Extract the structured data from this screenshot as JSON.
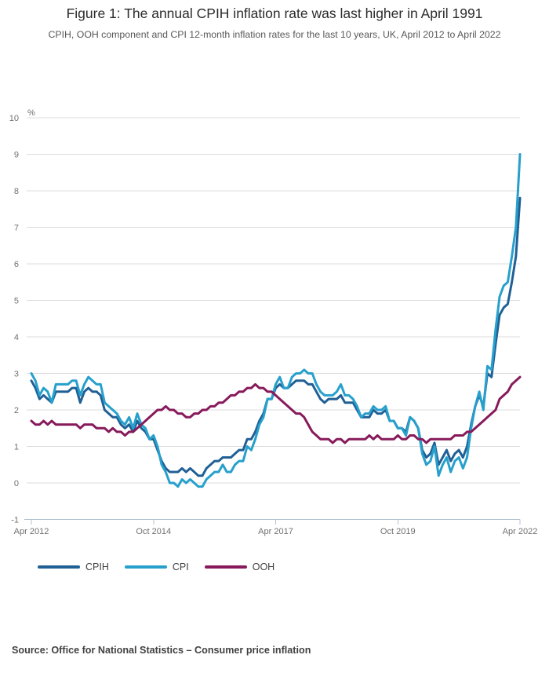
{
  "header": {
    "title": "Figure 1: The annual CPIH inflation rate was last higher in April 1991",
    "subtitle": "CPIH, OOH component and CPI 12-month inflation rates for the last 10 years, UK, April 2012 to April 2022"
  },
  "chart_data": {
    "type": "line",
    "x_unit": "month",
    "x_start": "Apr 2012",
    "x_end": "Apr 2022",
    "x_tick_labels": [
      "Apr 2012",
      "Oct 2014",
      "Apr 2017",
      "Oct 2019",
      "Apr 2022"
    ],
    "y_axis": {
      "unit_label": "%",
      "min": -1,
      "max": 10,
      "tick_step": 1
    },
    "grid": "horizontal",
    "legend_position": "bottom-left",
    "series": [
      {
        "name": "CPIH",
        "color": "#206095",
        "values": [
          2.8,
          2.6,
          2.3,
          2.4,
          2.3,
          2.2,
          2.5,
          2.5,
          2.5,
          2.5,
          2.6,
          2.6,
          2.2,
          2.5,
          2.6,
          2.5,
          2.5,
          2.4,
          2.0,
          1.9,
          1.8,
          1.8,
          1.6,
          1.5,
          1.6,
          1.4,
          1.7,
          1.5,
          1.4,
          1.2,
          1.2,
          0.9,
          0.6,
          0.4,
          0.3,
          0.3,
          0.3,
          0.4,
          0.3,
          0.4,
          0.3,
          0.2,
          0.2,
          0.4,
          0.5,
          0.6,
          0.6,
          0.7,
          0.7,
          0.7,
          0.8,
          0.9,
          0.9,
          1.2,
          1.2,
          1.4,
          1.7,
          1.9,
          2.3,
          2.3,
          2.6,
          2.7,
          2.6,
          2.6,
          2.7,
          2.8,
          2.8,
          2.8,
          2.7,
          2.7,
          2.5,
          2.3,
          2.2,
          2.3,
          2.3,
          2.3,
          2.4,
          2.2,
          2.2,
          2.2,
          2.0,
          1.8,
          1.8,
          1.8,
          2.0,
          1.9,
          1.9,
          2.0,
          1.7,
          1.7,
          1.5,
          1.5,
          1.4,
          1.8,
          1.7,
          1.5,
          0.9,
          0.7,
          0.8,
          1.1,
          0.5,
          0.7,
          0.9,
          0.6,
          0.8,
          0.9,
          0.7,
          1.0,
          1.6,
          2.1,
          2.4,
          2.1,
          3.0,
          2.9,
          3.8,
          4.6,
          4.8,
          4.9,
          5.5,
          6.2,
          7.8
        ]
      },
      {
        "name": "CPI",
        "color": "#27a0cc",
        "values": [
          3.0,
          2.8,
          2.4,
          2.6,
          2.5,
          2.2,
          2.7,
          2.7,
          2.7,
          2.7,
          2.8,
          2.8,
          2.4,
          2.7,
          2.9,
          2.8,
          2.7,
          2.7,
          2.2,
          2.1,
          2.0,
          1.9,
          1.7,
          1.6,
          1.8,
          1.5,
          1.9,
          1.6,
          1.5,
          1.2,
          1.3,
          1.0,
          0.5,
          0.3,
          0.0,
          0.0,
          -0.1,
          0.1,
          0.0,
          0.1,
          0.0,
          -0.1,
          -0.1,
          0.1,
          0.2,
          0.3,
          0.3,
          0.5,
          0.3,
          0.3,
          0.5,
          0.6,
          0.6,
          1.0,
          0.9,
          1.2,
          1.6,
          1.8,
          2.3,
          2.3,
          2.7,
          2.9,
          2.6,
          2.6,
          2.9,
          3.0,
          3.0,
          3.1,
          3.0,
          3.0,
          2.7,
          2.5,
          2.4,
          2.4,
          2.4,
          2.5,
          2.7,
          2.4,
          2.4,
          2.3,
          2.1,
          1.8,
          1.9,
          1.9,
          2.1,
          2.0,
          2.0,
          2.1,
          1.7,
          1.7,
          1.5,
          1.5,
          1.3,
          1.8,
          1.7,
          1.5,
          0.8,
          0.5,
          0.6,
          1.0,
          0.2,
          0.5,
          0.7,
          0.3,
          0.6,
          0.7,
          0.4,
          0.7,
          1.5,
          2.1,
          2.5,
          2.0,
          3.2,
          3.1,
          4.2,
          5.1,
          5.4,
          5.5,
          6.2,
          7.0,
          9.0
        ]
      },
      {
        "name": "OOH",
        "color": "#871a5b",
        "values": [
          1.7,
          1.6,
          1.6,
          1.7,
          1.6,
          1.7,
          1.6,
          1.6,
          1.6,
          1.6,
          1.6,
          1.6,
          1.5,
          1.6,
          1.6,
          1.6,
          1.5,
          1.5,
          1.5,
          1.4,
          1.5,
          1.4,
          1.4,
          1.3,
          1.4,
          1.4,
          1.5,
          1.6,
          1.7,
          1.8,
          1.9,
          2.0,
          2.0,
          2.1,
          2.0,
          2.0,
          1.9,
          1.9,
          1.8,
          1.8,
          1.9,
          1.9,
          2.0,
          2.0,
          2.1,
          2.1,
          2.2,
          2.2,
          2.3,
          2.4,
          2.4,
          2.5,
          2.5,
          2.6,
          2.6,
          2.7,
          2.6,
          2.6,
          2.5,
          2.5,
          2.4,
          2.3,
          2.2,
          2.1,
          2.0,
          1.9,
          1.9,
          1.8,
          1.6,
          1.4,
          1.3,
          1.2,
          1.2,
          1.2,
          1.1,
          1.2,
          1.2,
          1.1,
          1.2,
          1.2,
          1.2,
          1.2,
          1.2,
          1.3,
          1.2,
          1.3,
          1.2,
          1.2,
          1.2,
          1.2,
          1.3,
          1.2,
          1.2,
          1.3,
          1.3,
          1.2,
          1.2,
          1.1,
          1.2,
          1.2,
          1.2,
          1.2,
          1.2,
          1.2,
          1.3,
          1.3,
          1.3,
          1.4,
          1.4,
          1.5,
          1.6,
          1.7,
          1.8,
          1.9,
          2.0,
          2.3,
          2.4,
          2.5,
          2.7,
          2.8,
          2.9
        ]
      }
    ]
  },
  "footer": {
    "source": "Source: Office for National Statistics – Consumer price inflation"
  },
  "colors": {
    "cpih_line": "#206095",
    "cpi_line": "#27a0cc",
    "ooh_line": "#871a5b",
    "gridline": "#dedede",
    "axis_line": "#b3c3d3",
    "tick_label": "#707071",
    "title_text": "#2b2b2b",
    "body_text": "#414042"
  }
}
